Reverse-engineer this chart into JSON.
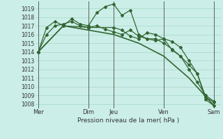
{
  "title": "",
  "xlabel": "Pression niveau de la mer( hPa )",
  "background_color": "#cceee8",
  "grid_color": "#aaddcc",
  "line_color": "#336633",
  "ylim": [
    1007.5,
    1019.8
  ],
  "yticks": [
    1008,
    1009,
    1010,
    1011,
    1012,
    1013,
    1014,
    1015,
    1016,
    1017,
    1018,
    1019
  ],
  "xtick_positions": [
    0,
    6,
    9,
    15,
    21
  ],
  "xtick_labels": [
    "Mer",
    "Dim",
    "Jeu",
    "Ven",
    "Sam"
  ],
  "day_lines": [
    0,
    6,
    9,
    15,
    21
  ],
  "xlim": [
    -0.3,
    21.8
  ],
  "series": [
    {
      "x": [
        0,
        1,
        2,
        3,
        4,
        5,
        6,
        7,
        8,
        9,
        10,
        11,
        12,
        13,
        14,
        15,
        16,
        17,
        18,
        19,
        20,
        21
      ],
      "y": [
        1014.0,
        1016.8,
        1017.5,
        1017.0,
        1017.8,
        1017.2,
        1017.0,
        1018.5,
        1019.2,
        1019.5,
        1018.2,
        1018.8,
        1016.0,
        1015.5,
        1015.3,
        1015.5,
        1015.2,
        1014.5,
        1013.0,
        1011.5,
        1008.8,
        1008.2
      ],
      "marker": "D",
      "markersize": 2.0,
      "linewidth": 0.9
    },
    {
      "x": [
        0,
        1,
        2,
        3,
        4,
        5,
        6,
        7,
        8,
        9,
        10,
        11,
        12,
        13,
        14,
        15,
        16,
        17,
        18,
        19,
        20,
        21
      ],
      "y": [
        1014.0,
        1016.0,
        1017.0,
        1017.2,
        1017.5,
        1017.0,
        1016.8,
        1017.0,
        1016.6,
        1016.3,
        1016.0,
        1016.5,
        1015.8,
        1015.5,
        1015.5,
        1015.0,
        1014.3,
        1013.5,
        1012.0,
        1010.5,
        1009.0,
        1008.3
      ],
      "marker": "D",
      "markersize": 2.0,
      "linewidth": 0.9
    },
    {
      "x": [
        0,
        3,
        6,
        9,
        10,
        11,
        12,
        13,
        14,
        15,
        16,
        17,
        18,
        19,
        20,
        21
      ],
      "y": [
        1014.0,
        1017.0,
        1016.8,
        1016.8,
        1016.5,
        1015.8,
        1015.5,
        1016.2,
        1016.0,
        1015.5,
        1014.2,
        1013.5,
        1012.5,
        1011.5,
        1008.5,
        1007.8
      ],
      "marker": "D",
      "markersize": 2.0,
      "linewidth": 0.9
    },
    {
      "x": [
        0,
        3,
        6,
        9,
        12,
        15,
        18,
        21
      ],
      "y": [
        1014.0,
        1017.0,
        1016.5,
        1016.0,
        1015.0,
        1013.5,
        1011.0,
        1007.8
      ],
      "marker": null,
      "markersize": 0,
      "linewidth": 1.2
    }
  ]
}
